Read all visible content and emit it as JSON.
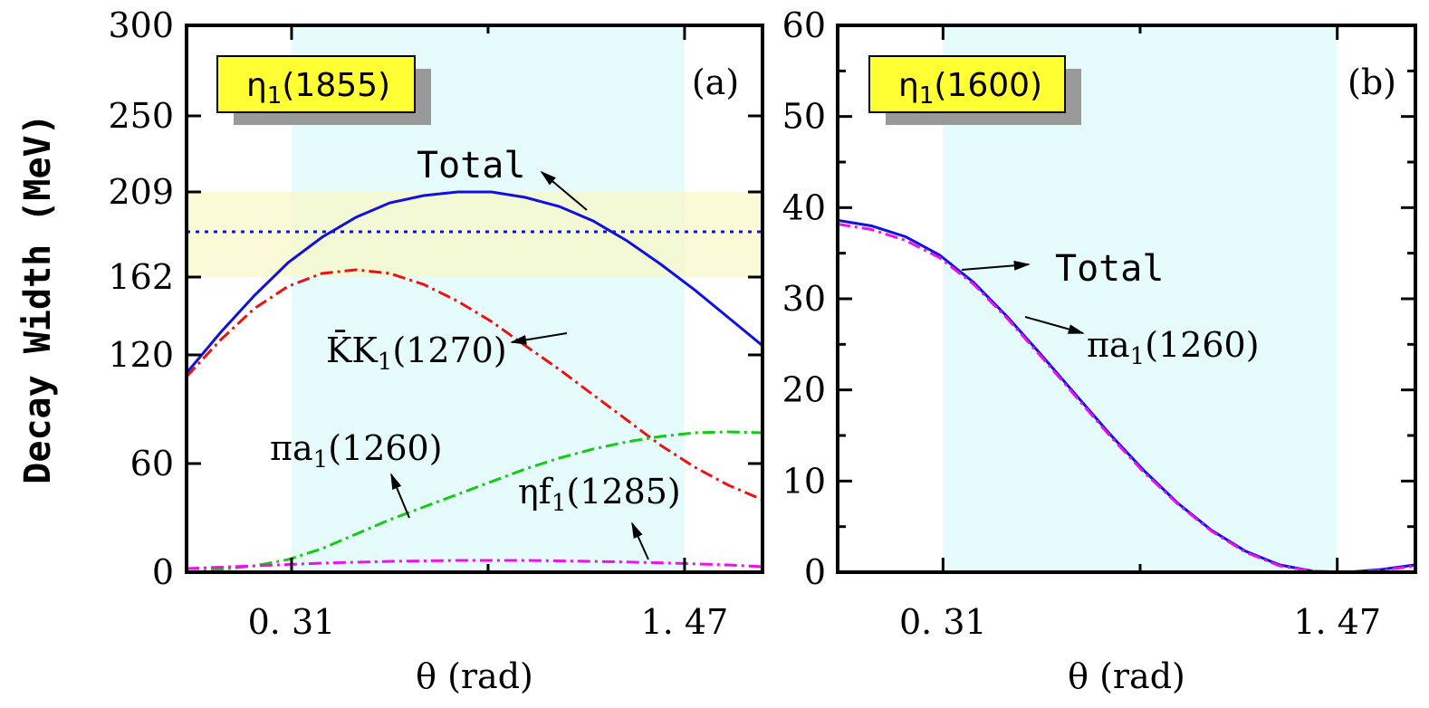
{
  "chart_data": [
    {
      "type": "line",
      "panel_label": "(a)",
      "box_label": "η",
      "box_label_sub": "1",
      "box_label_tail": "(1855)",
      "ylabel": "Decay Width (MeV)",
      "xlabel": "θ (rad)",
      "xlim": [
        0.0,
        1.7
      ],
      "ylim": [
        0,
        300
      ],
      "x_ticks": [
        0.31,
        1.47
      ],
      "x_tick_labels": [
        "0. 31",
        "1. 47"
      ],
      "y_ticks": [
        0,
        60,
        120,
        162,
        209,
        250,
        300
      ],
      "y_tick_labels": [
        "0",
        "60",
        "120",
        "162",
        "209",
        "250",
        "300"
      ],
      "x_band": [
        0.31,
        1.47
      ],
      "y_band": [
        162,
        209
      ],
      "reference_line_y": 187,
      "colors": {
        "total": "#1010e0",
        "kk1": "#ee1111",
        "pia1": "#11cc11",
        "etaf1": "#ee11ee",
        "band_x": "#e6fcfc",
        "band_y": "#f8f8c8",
        "ref": "#1010e0"
      },
      "series": [
        {
          "key": "total",
          "name": "Total",
          "style": "solid",
          "x": [
            0.0,
            0.1,
            0.2,
            0.3,
            0.4,
            0.5,
            0.6,
            0.7,
            0.8,
            0.9,
            1.0,
            1.1,
            1.2,
            1.3,
            1.4,
            1.5,
            1.6,
            1.7
          ],
          "y": [
            110,
            132,
            152,
            170,
            184,
            195,
            203,
            207,
            209,
            209,
            206,
            201,
            193,
            182,
            169,
            155,
            140,
            125
          ]
        },
        {
          "key": "kk1",
          "name": "K̄K",
          "name_sub": "1",
          "name_tail": "(1270)",
          "style": "dashdot",
          "x": [
            0.0,
            0.1,
            0.2,
            0.3,
            0.4,
            0.5,
            0.6,
            0.7,
            0.8,
            0.9,
            1.0,
            1.1,
            1.2,
            1.3,
            1.4,
            1.5,
            1.6,
            1.7
          ],
          "y": [
            108,
            128,
            145,
            157,
            164,
            166,
            164,
            158,
            149,
            138,
            125,
            112,
            98,
            84,
            70,
            58,
            48,
            40
          ]
        },
        {
          "key": "pia1",
          "name": "πa",
          "name_sub": "1",
          "name_tail": "(1260)",
          "style": "dashdot",
          "x": [
            0.0,
            0.1,
            0.2,
            0.3,
            0.4,
            0.5,
            0.6,
            0.7,
            0.8,
            0.9,
            1.0,
            1.1,
            1.2,
            1.3,
            1.4,
            1.5,
            1.6,
            1.7
          ],
          "y": [
            0,
            1.5,
            3.5,
            7,
            13,
            21,
            29,
            36,
            43,
            50,
            57,
            63,
            68,
            72,
            75,
            77,
            77.5,
            77
          ]
        },
        {
          "key": "etaf1",
          "name": "ηf",
          "name_sub": "1",
          "name_tail": "(1285)",
          "style": "dashdot",
          "x": [
            0.0,
            0.2,
            0.4,
            0.6,
            0.8,
            1.0,
            1.2,
            1.4,
            1.6,
            1.7
          ],
          "y": [
            2,
            3.5,
            5,
            6,
            6.5,
            6.5,
            6,
            5.2,
            4,
            3
          ]
        }
      ],
      "annotations": [
        "Total",
        "K̄K1(1270)",
        "πa1(1260)",
        "ηf1(1285)"
      ]
    },
    {
      "type": "line",
      "panel_label": "(b)",
      "box_label": "η",
      "box_label_sub": "1",
      "box_label_tail": "(1600)",
      "xlabel": "θ (rad)",
      "xlim": [
        0.0,
        1.7
      ],
      "ylim": [
        0,
        60
      ],
      "x_ticks": [
        0.31,
        1.47
      ],
      "x_tick_labels": [
        "0. 31",
        "1. 47"
      ],
      "y_ticks": [
        0,
        10,
        20,
        30,
        40,
        50,
        60
      ],
      "y_tick_labels": [
        "0",
        "10",
        "20",
        "30",
        "40",
        "50",
        "60"
      ],
      "x_band": [
        0.31,
        1.47
      ],
      "colors": {
        "total": "#1010e0",
        "pia1": "#ee11ee",
        "band_x": "#e6fcfc"
      },
      "series": [
        {
          "key": "total",
          "name": "Total",
          "style": "solid",
          "x": [
            0.0,
            0.1,
            0.2,
            0.3,
            0.4,
            0.5,
            0.6,
            0.7,
            0.8,
            0.9,
            1.0,
            1.1,
            1.2,
            1.3,
            1.4,
            1.5,
            1.6,
            1.7
          ],
          "y": [
            38.6,
            38.0,
            36.8,
            34.8,
            31.8,
            28.0,
            23.8,
            19.5,
            15.2,
            11.2,
            7.6,
            4.6,
            2.3,
            0.8,
            0.1,
            0.0,
            0.3,
            0.8
          ]
        },
        {
          "key": "pia1",
          "name": "πa",
          "name_sub": "1",
          "name_tail": "(1260)",
          "style": "dashdot",
          "x": [
            0.0,
            0.1,
            0.2,
            0.3,
            0.4,
            0.5,
            0.6,
            0.7,
            0.8,
            0.9,
            1.0,
            1.1,
            1.2,
            1.3,
            1.4,
            1.5,
            1.6,
            1.7
          ],
          "y": [
            38.2,
            37.6,
            36.4,
            34.5,
            31.6,
            27.8,
            23.6,
            19.3,
            15.0,
            11.0,
            7.5,
            4.5,
            2.2,
            0.7,
            0.1,
            0.0,
            0.2,
            0.7
          ]
        }
      ],
      "annotations": [
        "Total",
        "πa1(1260)"
      ]
    }
  ]
}
